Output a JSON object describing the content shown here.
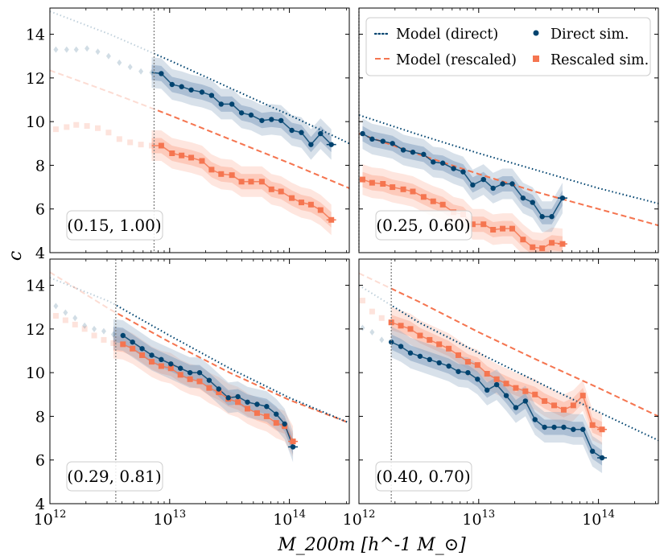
{
  "colors": {
    "direct": "#00436f",
    "rescaled": "#f57550",
    "direct_fill": "#8fa9c4",
    "rescaled_fill": "#fbb7a3",
    "vline": "#808080",
    "frame": "#000000",
    "legend_border": "#cccccc"
  },
  "x_axis_label": "M_200m [h^-1 M_⊙]",
  "y_axis_label": "c",
  "legend": {
    "model_direct": "Model (direct)",
    "model_rescaled": "Model (rescaled)",
    "direct_sim": "Direct sim.",
    "rescaled_sim": "Rescaled sim."
  },
  "chart_data": [
    {
      "type": "line",
      "label": "(0.15, 1.00)",
      "xscale": "log",
      "xlim_log10": [
        12.0,
        14.5
      ],
      "ylim": [
        4,
        15.2
      ],
      "yticks": [
        4,
        6,
        8,
        10,
        12,
        14
      ],
      "xticks_log10": [
        12,
        13,
        14
      ],
      "mass_cut_log10": 12.87,
      "model_direct": [
        [
          12.0,
          15.05
        ],
        [
          12.5,
          14.0
        ],
        [
          13.0,
          12.8
        ],
        [
          13.5,
          11.55
        ],
        [
          14.0,
          10.3
        ],
        [
          14.5,
          9.0
        ]
      ],
      "model_rescaled": [
        [
          12.0,
          12.35
        ],
        [
          12.5,
          11.35
        ],
        [
          13.0,
          10.3
        ],
        [
          13.5,
          9.2
        ],
        [
          14.0,
          8.1
        ],
        [
          14.5,
          6.95
        ]
      ],
      "direct_sim": [
        [
          12.05,
          13.3
        ],
        [
          12.14,
          13.3
        ],
        [
          12.22,
          13.3
        ],
        [
          12.31,
          13.35
        ],
        [
          12.4,
          13.2
        ],
        [
          12.49,
          13.0
        ],
        [
          12.58,
          12.7
        ],
        [
          12.67,
          12.5
        ],
        [
          12.76,
          12.3
        ],
        [
          12.85,
          12.25
        ],
        [
          12.93,
          12.2
        ],
        [
          13.02,
          11.7
        ],
        [
          13.1,
          11.6
        ],
        [
          13.18,
          11.45
        ],
        [
          13.27,
          11.35
        ],
        [
          13.35,
          11.2
        ],
        [
          13.43,
          10.8
        ],
        [
          13.52,
          10.8
        ],
        [
          13.6,
          10.4
        ],
        [
          13.68,
          10.3
        ],
        [
          13.77,
          10.05
        ],
        [
          13.85,
          10.1
        ],
        [
          13.93,
          10.05
        ],
        [
          14.02,
          9.6
        ],
        [
          14.1,
          9.5
        ],
        [
          14.18,
          8.95
        ],
        [
          14.26,
          9.45
        ],
        [
          14.35,
          8.95
        ]
      ],
      "rescaled_sim": [
        [
          12.05,
          9.65
        ],
        [
          12.14,
          9.75
        ],
        [
          12.22,
          9.85
        ],
        [
          12.31,
          9.8
        ],
        [
          12.4,
          9.7
        ],
        [
          12.49,
          9.5
        ],
        [
          12.58,
          9.2
        ],
        [
          12.67,
          9.05
        ],
        [
          12.76,
          8.95
        ],
        [
          12.85,
          8.9
        ],
        [
          12.93,
          8.9
        ],
        [
          13.02,
          8.55
        ],
        [
          13.1,
          8.45
        ],
        [
          13.18,
          8.35
        ],
        [
          13.27,
          8.2
        ],
        [
          13.35,
          7.8
        ],
        [
          13.43,
          7.6
        ],
        [
          13.52,
          7.55
        ],
        [
          13.6,
          7.25
        ],
        [
          13.68,
          7.25
        ],
        [
          13.77,
          7.25
        ],
        [
          13.85,
          6.9
        ],
        [
          13.93,
          6.8
        ],
        [
          14.02,
          6.5
        ],
        [
          14.1,
          6.3
        ],
        [
          14.18,
          6.2
        ],
        [
          14.26,
          5.95
        ],
        [
          14.35,
          5.5
        ]
      ]
    },
    {
      "type": "line",
      "label": "(0.25, 0.60)",
      "xscale": "log",
      "xlim_log10": [
        12.0,
        14.5
      ],
      "ylim": [
        4,
        15.2
      ],
      "yticks": [
        4,
        6,
        8,
        10,
        12,
        14
      ],
      "xticks_log10": [
        12,
        13,
        14
      ],
      "mass_cut_log10": 12.0,
      "model_direct": [
        [
          12.0,
          10.3
        ],
        [
          12.5,
          9.4
        ],
        [
          13.0,
          8.55
        ],
        [
          13.5,
          7.75
        ],
        [
          14.0,
          6.95
        ],
        [
          14.5,
          6.25
        ]
      ],
      "model_rescaled": [
        [
          12.0,
          9.45
        ],
        [
          12.5,
          8.5
        ],
        [
          13.0,
          7.6
        ],
        [
          13.5,
          6.75
        ],
        [
          14.0,
          6.0
        ],
        [
          14.5,
          5.25
        ]
      ],
      "direct_sim": [
        [
          12.03,
          9.45
        ],
        [
          12.11,
          9.2
        ],
        [
          12.2,
          9.1
        ],
        [
          12.28,
          9.0
        ],
        [
          12.37,
          8.7
        ],
        [
          12.45,
          8.6
        ],
        [
          12.54,
          8.5
        ],
        [
          12.62,
          8.15
        ],
        [
          12.7,
          8.1
        ],
        [
          12.79,
          7.85
        ],
        [
          12.87,
          7.7
        ],
        [
          12.95,
          7.1
        ],
        [
          13.04,
          7.35
        ],
        [
          13.12,
          6.95
        ],
        [
          13.2,
          7.15
        ],
        [
          13.28,
          7.15
        ],
        [
          13.37,
          6.5
        ],
        [
          13.45,
          6.3
        ],
        [
          13.53,
          5.65
        ],
        [
          13.61,
          5.65
        ],
        [
          13.7,
          6.5
        ]
      ],
      "rescaled_sim": [
        [
          12.03,
          7.35
        ],
        [
          12.11,
          7.2
        ],
        [
          12.2,
          7.15
        ],
        [
          12.28,
          7.0
        ],
        [
          12.37,
          6.9
        ],
        [
          12.45,
          6.8
        ],
        [
          12.54,
          6.55
        ],
        [
          12.62,
          6.35
        ],
        [
          12.7,
          6.2
        ],
        [
          12.79,
          5.85
        ],
        [
          12.87,
          5.75
        ],
        [
          12.95,
          5.3
        ],
        [
          13.04,
          5.3
        ],
        [
          13.12,
          5.05
        ],
        [
          13.2,
          5.1
        ],
        [
          13.28,
          5.1
        ],
        [
          13.37,
          4.6
        ],
        [
          13.45,
          4.25
        ],
        [
          13.53,
          4.2
        ],
        [
          13.61,
          4.45
        ],
        [
          13.7,
          4.4
        ]
      ]
    },
    {
      "type": "line",
      "label": "(0.29, 0.81)",
      "xscale": "log",
      "xlim_log10": [
        12.0,
        14.5
      ],
      "ylim": [
        4,
        15.2
      ],
      "yticks": [
        4,
        6,
        8,
        10,
        12,
        14
      ],
      "xticks_log10": [
        12,
        13,
        14
      ],
      "mass_cut_log10": 12.55,
      "model_direct": [
        [
          12.0,
          14.35
        ],
        [
          12.5,
          13.25
        ],
        [
          13.0,
          11.7
        ],
        [
          13.5,
          10.2
        ],
        [
          14.0,
          8.85
        ],
        [
          14.5,
          7.7
        ]
      ],
      "model_rescaled": [
        [
          12.0,
          14.6
        ],
        [
          12.5,
          12.9
        ],
        [
          13.0,
          11.4
        ],
        [
          13.5,
          10.0
        ],
        [
          14.0,
          8.75
        ],
        [
          14.5,
          7.7
        ]
      ],
      "direct_sim": [
        [
          12.05,
          13.05
        ],
        [
          12.13,
          12.75
        ],
        [
          12.21,
          12.5
        ],
        [
          12.29,
          12.15
        ],
        [
          12.37,
          12.0
        ],
        [
          12.45,
          11.9
        ],
        [
          12.53,
          11.75
        ],
        [
          12.61,
          11.7
        ],
        [
          12.69,
          11.4
        ],
        [
          12.77,
          11.1
        ],
        [
          12.85,
          10.8
        ],
        [
          12.93,
          10.6
        ],
        [
          13.01,
          10.4
        ],
        [
          13.09,
          10.2
        ],
        [
          13.17,
          10.0
        ],
        [
          13.25,
          10.0
        ],
        [
          13.33,
          9.65
        ],
        [
          13.41,
          9.25
        ],
        [
          13.49,
          8.85
        ],
        [
          13.57,
          8.9
        ],
        [
          13.65,
          8.65
        ],
        [
          13.73,
          8.55
        ],
        [
          13.81,
          8.45
        ],
        [
          13.89,
          8.1
        ],
        [
          13.96,
          7.65
        ],
        [
          14.03,
          6.6
        ]
      ],
      "rescaled_sim": [
        [
          12.05,
          12.6
        ],
        [
          12.13,
          12.4
        ],
        [
          12.21,
          12.2
        ],
        [
          12.29,
          12.0
        ],
        [
          12.37,
          11.7
        ],
        [
          12.45,
          11.5
        ],
        [
          12.53,
          11.35
        ],
        [
          12.61,
          11.3
        ],
        [
          12.69,
          11.1
        ],
        [
          12.77,
          10.8
        ],
        [
          12.85,
          10.5
        ],
        [
          12.93,
          10.3
        ],
        [
          13.01,
          10.2
        ],
        [
          13.09,
          9.9
        ],
        [
          13.17,
          9.7
        ],
        [
          13.25,
          9.6
        ],
        [
          13.33,
          9.3
        ],
        [
          13.41,
          9.1
        ],
        [
          13.49,
          8.8
        ],
        [
          13.57,
          8.65
        ],
        [
          13.65,
          8.35
        ],
        [
          13.73,
          8.15
        ],
        [
          13.81,
          8.0
        ],
        [
          13.89,
          7.7
        ],
        [
          13.96,
          7.55
        ],
        [
          14.03,
          6.85
        ]
      ]
    },
    {
      "type": "line",
      "label": "(0.40, 0.70)",
      "xscale": "log",
      "xlim_log10": [
        12.0,
        14.5
      ],
      "ylim": [
        4,
        15.2
      ],
      "yticks": [
        4,
        6,
        8,
        10,
        12,
        14
      ],
      "xticks_log10": [
        12,
        13,
        14
      ],
      "mass_cut_log10": 12.27,
      "model_direct": [
        [
          12.0,
          14.0
        ],
        [
          12.5,
          12.3
        ],
        [
          13.0,
          10.9
        ],
        [
          13.5,
          9.55
        ],
        [
          14.0,
          8.2
        ],
        [
          14.5,
          6.9
        ]
      ],
      "model_rescaled": [
        [
          12.0,
          14.55
        ],
        [
          12.5,
          13.25
        ],
        [
          13.0,
          11.85
        ],
        [
          13.5,
          10.55
        ],
        [
          14.0,
          9.3
        ],
        [
          14.5,
          8.0
        ]
      ],
      "direct_sim": [
        [
          12.03,
          12.05
        ],
        [
          12.11,
          11.85
        ],
        [
          12.19,
          11.5
        ],
        [
          12.27,
          11.4
        ],
        [
          12.35,
          11.2
        ],
        [
          12.43,
          10.9
        ],
        [
          12.51,
          10.75
        ],
        [
          12.59,
          10.6
        ],
        [
          12.67,
          10.45
        ],
        [
          12.75,
          10.3
        ],
        [
          12.83,
          10.05
        ],
        [
          12.91,
          10.0
        ],
        [
          12.99,
          9.7
        ],
        [
          13.07,
          9.2
        ],
        [
          13.15,
          9.45
        ],
        [
          13.23,
          8.95
        ],
        [
          13.31,
          8.4
        ],
        [
          13.39,
          8.7
        ],
        [
          13.47,
          7.85
        ],
        [
          13.55,
          7.5
        ],
        [
          13.63,
          7.5
        ],
        [
          13.71,
          7.5
        ],
        [
          13.79,
          7.4
        ],
        [
          13.87,
          7.4
        ],
        [
          13.95,
          6.4
        ],
        [
          14.03,
          6.1
        ]
      ],
      "rescaled_sim": [
        [
          12.03,
          13.3
        ],
        [
          12.11,
          12.8
        ],
        [
          12.19,
          12.5
        ],
        [
          12.27,
          12.3
        ],
        [
          12.35,
          12.15
        ],
        [
          12.43,
          12.0
        ],
        [
          12.51,
          11.7
        ],
        [
          12.59,
          11.5
        ],
        [
          12.67,
          11.3
        ],
        [
          12.75,
          11.1
        ],
        [
          12.83,
          10.8
        ],
        [
          12.91,
          10.5
        ],
        [
          12.99,
          10.35
        ],
        [
          13.07,
          9.95
        ],
        [
          13.15,
          9.7
        ],
        [
          13.23,
          9.5
        ],
        [
          13.31,
          9.3
        ],
        [
          13.39,
          9.15
        ],
        [
          13.47,
          9.0
        ],
        [
          13.55,
          8.7
        ],
        [
          13.63,
          8.5
        ],
        [
          13.71,
          8.3
        ],
        [
          13.79,
          8.5
        ],
        [
          13.87,
          8.95
        ],
        [
          13.95,
          7.6
        ],
        [
          14.03,
          7.4
        ]
      ]
    }
  ]
}
